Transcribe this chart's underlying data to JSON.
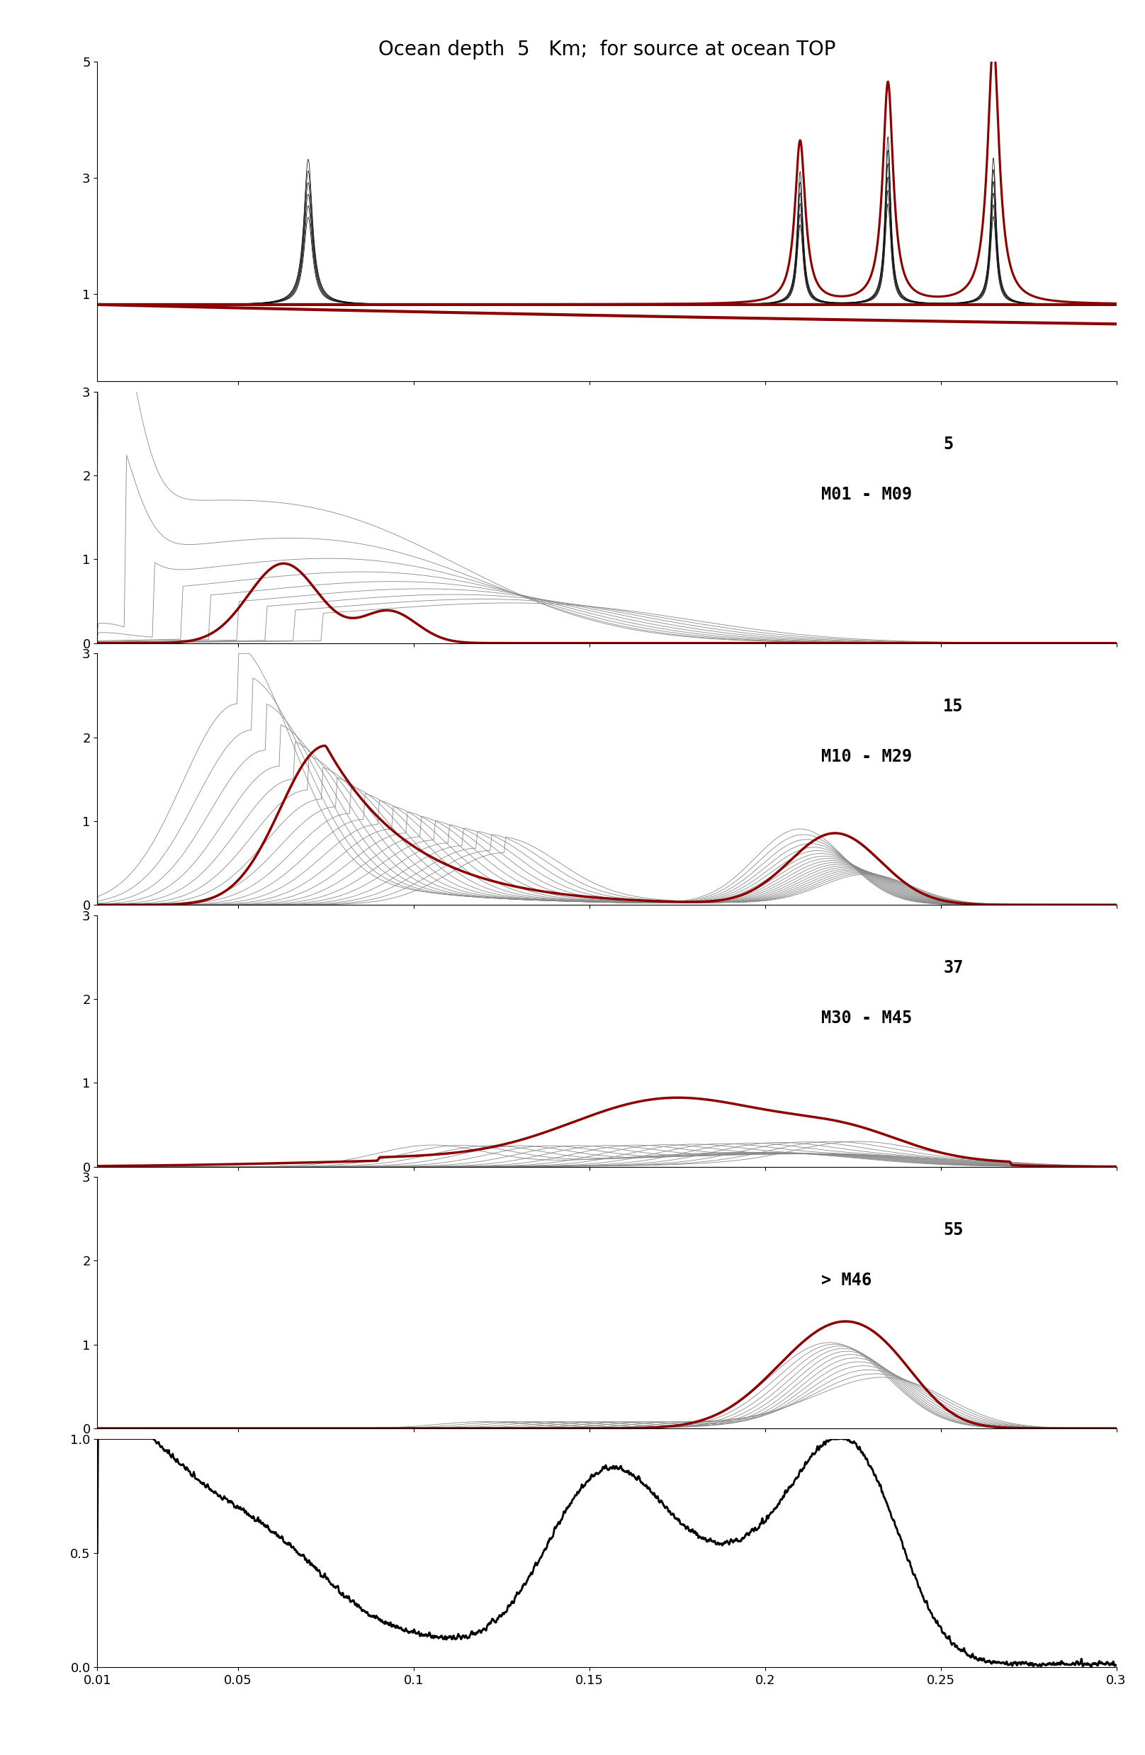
{
  "title": "Ocean depth  5   Km;  for source at ocean TOP",
  "title_fontsize": 20,
  "xlim": [
    0.01,
    0.3
  ],
  "xticks": [
    0.01,
    0.05,
    0.1,
    0.15,
    0.2,
    0.25,
    0.3
  ],
  "xticklabels": [
    "0.01",
    "0.05",
    "0.1",
    "0.15",
    "0.2",
    "0.25",
    "0.3"
  ],
  "panel0_ylim": [
    -0.5,
    5
  ],
  "panel0_yticks": [
    1,
    3,
    5
  ],
  "panel1_ylim": [
    0,
    3
  ],
  "panel1_yticks": [
    0,
    1,
    2,
    3
  ],
  "panel2_ylim": [
    0,
    3
  ],
  "panel2_yticks": [
    0,
    1,
    2,
    3
  ],
  "panel3_ylim": [
    0,
    3
  ],
  "panel3_yticks": [
    0,
    1,
    2,
    3
  ],
  "panel4_ylim": [
    0,
    3
  ],
  "panel4_yticks": [
    0,
    1,
    2,
    3
  ],
  "panel5_ylim": [
    0,
    1
  ],
  "panel5_yticks": [
    0,
    0.5,
    1
  ],
  "panel1_label1": "5",
  "panel1_label2": "M01 - M09",
  "panel2_label1": "15",
  "panel2_label2": "M10 - M29",
  "panel3_label1": "37",
  "panel3_label2": "M30 - M45",
  "panel4_label1": "55",
  "panel4_label2": "> M46",
  "dark_red": "#8B0000",
  "black": "#000000",
  "light_gray": "#888888",
  "bg_color": "#ffffff"
}
